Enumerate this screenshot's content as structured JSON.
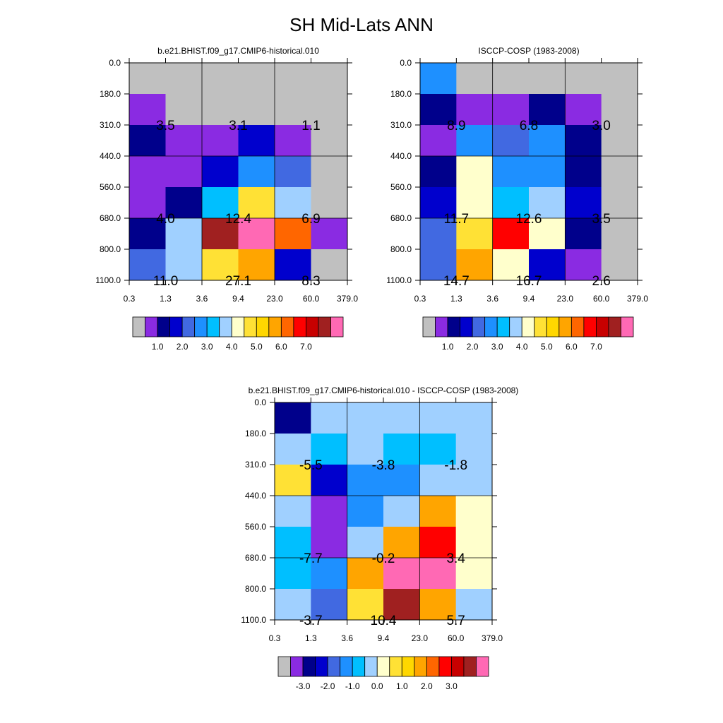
{
  "figure": {
    "title": "SH Mid-Lats ANN",
    "palette": [
      "#c0c0c0",
      "#8a2be2",
      "#00008b",
      "#0000cd",
      "#4169e1",
      "#1e90ff",
      "#00bfff",
      "#a0d0ff",
      "#ffffcc",
      "#ffe135",
      "#ffd700",
      "#ffa500",
      "#ff6600",
      "#ff0000",
      "#c80000",
      "#a02020",
      "#ff69b4"
    ]
  },
  "chart_data": [
    {
      "type": "heatmap",
      "title": "b.e21.BHIST.f09_g17.CMIP6-historical.010",
      "x_ticks": [
        "0.3",
        "1.3",
        "3.6",
        "9.4",
        "23.0",
        "60.0",
        "379.0"
      ],
      "y_ticks": [
        "0.0",
        "180.0",
        "310.0",
        "440.0",
        "560.0",
        "680.0",
        "800.0",
        "1100.0"
      ],
      "cell_colors": [
        [
          "#c0c0c0",
          "#c0c0c0",
          "#c0c0c0",
          "#c0c0c0",
          "#c0c0c0",
          "#c0c0c0"
        ],
        [
          "#8a2be2",
          "#c0c0c0",
          "#c0c0c0",
          "#c0c0c0",
          "#c0c0c0",
          "#c0c0c0"
        ],
        [
          "#00008b",
          "#8a2be2",
          "#8a2be2",
          "#0000cd",
          "#8a2be2",
          "#c0c0c0"
        ],
        [
          "#8a2be2",
          "#8a2be2",
          "#0000cd",
          "#1e90ff",
          "#4169e1",
          "#c0c0c0"
        ],
        [
          "#8a2be2",
          "#00008b",
          "#00bfff",
          "#ffe135",
          "#a0d0ff",
          "#c0c0c0"
        ],
        [
          "#00008b",
          "#a0d0ff",
          "#a02020",
          "#ff69b4",
          "#ff6600",
          "#8a2be2"
        ],
        [
          "#4169e1",
          "#a0d0ff",
          "#ffe135",
          "#ffa500",
          "#0000cd",
          "#c0c0c0"
        ]
      ],
      "annotations": [
        {
          "text": "3.5",
          "col": 1,
          "row": 1
        },
        {
          "text": "3.1",
          "col": 3,
          "row": 1
        },
        {
          "text": "1.1",
          "col": 5,
          "row": 1
        },
        {
          "text": "4.0",
          "col": 1,
          "row": 4
        },
        {
          "text": "12.4",
          "col": 3,
          "row": 4
        },
        {
          "text": "6.9",
          "col": 5,
          "row": 4
        },
        {
          "text": "11.0",
          "col": 1,
          "row": 6
        },
        {
          "text": "27.1",
          "col": 3,
          "row": 6
        },
        {
          "text": "8.3",
          "col": 5,
          "row": 6
        }
      ],
      "colorbar": {
        "colors": [
          "#c0c0c0",
          "#8a2be2",
          "#00008b",
          "#0000cd",
          "#4169e1",
          "#1e90ff",
          "#00bfff",
          "#a0d0ff",
          "#ffffcc",
          "#ffe135",
          "#ffd700",
          "#ffa500",
          "#ff6600",
          "#ff0000",
          "#c80000",
          "#a02020",
          "#ff69b4"
        ],
        "labels": [
          {
            "text": "1.0",
            "edge": 2
          },
          {
            "text": "2.0",
            "edge": 4
          },
          {
            "text": "3.0",
            "edge": 6
          },
          {
            "text": "4.0",
            "edge": 8
          },
          {
            "text": "5.0",
            "edge": 10
          },
          {
            "text": "6.0",
            "edge": 12
          },
          {
            "text": "7.0",
            "edge": 14
          }
        ]
      }
    },
    {
      "type": "heatmap",
      "title": "ISCCP-COSP (1983-2008)",
      "x_ticks": [
        "0.3",
        "1.3",
        "3.6",
        "9.4",
        "23.0",
        "60.0",
        "379.0"
      ],
      "y_ticks": [
        "0.0",
        "180.0",
        "310.0",
        "440.0",
        "560.0",
        "680.0",
        "800.0",
        "1100.0"
      ],
      "cell_colors": [
        [
          "#1e90ff",
          "#c0c0c0",
          "#c0c0c0",
          "#c0c0c0",
          "#c0c0c0",
          "#c0c0c0"
        ],
        [
          "#00008b",
          "#8a2be2",
          "#8a2be2",
          "#00008b",
          "#8a2be2",
          "#c0c0c0"
        ],
        [
          "#8a2be2",
          "#1e90ff",
          "#4169e1",
          "#1e90ff",
          "#00008b",
          "#c0c0c0"
        ],
        [
          "#00008b",
          "#ffffcc",
          "#1e90ff",
          "#1e90ff",
          "#00008b",
          "#c0c0c0"
        ],
        [
          "#0000cd",
          "#ffffcc",
          "#00bfff",
          "#a0d0ff",
          "#0000cd",
          "#c0c0c0"
        ],
        [
          "#4169e1",
          "#ffe135",
          "#ff0000",
          "#ffffcc",
          "#00008b",
          "#c0c0c0"
        ],
        [
          "#4169e1",
          "#ffa500",
          "#ffffcc",
          "#0000cd",
          "#8a2be2",
          "#c0c0c0"
        ]
      ],
      "annotations": [
        {
          "text": "8.9",
          "col": 1,
          "row": 1
        },
        {
          "text": "6.8",
          "col": 3,
          "row": 1
        },
        {
          "text": "3.0",
          "col": 5,
          "row": 1
        },
        {
          "text": "11.7",
          "col": 1,
          "row": 4
        },
        {
          "text": "12.6",
          "col": 3,
          "row": 4
        },
        {
          "text": "3.5",
          "col": 5,
          "row": 4
        },
        {
          "text": "14.7",
          "col": 1,
          "row": 6
        },
        {
          "text": "16.7",
          "col": 3,
          "row": 6
        },
        {
          "text": "2.6",
          "col": 5,
          "row": 6
        }
      ],
      "colorbar": {
        "colors": [
          "#c0c0c0",
          "#8a2be2",
          "#00008b",
          "#0000cd",
          "#4169e1",
          "#1e90ff",
          "#00bfff",
          "#a0d0ff",
          "#ffffcc",
          "#ffe135",
          "#ffd700",
          "#ffa500",
          "#ff6600",
          "#ff0000",
          "#c80000",
          "#a02020",
          "#ff69b4"
        ],
        "labels": [
          {
            "text": "1.0",
            "edge": 2
          },
          {
            "text": "2.0",
            "edge": 4
          },
          {
            "text": "3.0",
            "edge": 6
          },
          {
            "text": "4.0",
            "edge": 8
          },
          {
            "text": "5.0",
            "edge": 10
          },
          {
            "text": "6.0",
            "edge": 12
          },
          {
            "text": "7.0",
            "edge": 14
          }
        ]
      }
    },
    {
      "type": "heatmap",
      "title": "b.e21.BHIST.f09_g17.CMIP6-historical.010 - ISCCP-COSP (1983-2008)",
      "x_ticks": [
        "0.3",
        "1.3",
        "3.6",
        "9.4",
        "23.0",
        "60.0",
        "379.0"
      ],
      "y_ticks": [
        "0.0",
        "180.0",
        "310.0",
        "440.0",
        "560.0",
        "680.0",
        "800.0",
        "1100.0"
      ],
      "cell_colors": [
        [
          "#00008b",
          "#a0d0ff",
          "#a0d0ff",
          "#a0d0ff",
          "#a0d0ff",
          "#a0d0ff"
        ],
        [
          "#a0d0ff",
          "#00bfff",
          "#a0d0ff",
          "#00bfff",
          "#00bfff",
          "#a0d0ff"
        ],
        [
          "#ffe135",
          "#0000cd",
          "#1e90ff",
          "#1e90ff",
          "#a0d0ff",
          "#a0d0ff"
        ],
        [
          "#a0d0ff",
          "#8a2be2",
          "#1e90ff",
          "#a0d0ff",
          "#ffa500",
          "#ffffcc"
        ],
        [
          "#00bfff",
          "#8a2be2",
          "#a0d0ff",
          "#ffa500",
          "#ff0000",
          "#ffffcc"
        ],
        [
          "#00bfff",
          "#1e90ff",
          "#ffa500",
          "#ff69b4",
          "#ff69b4",
          "#ffffcc"
        ],
        [
          "#a0d0ff",
          "#4169e1",
          "#ffe135",
          "#a02020",
          "#ffa500",
          "#a0d0ff"
        ]
      ],
      "annotations": [
        {
          "text": "-5.5",
          "col": 1,
          "row": 1
        },
        {
          "text": "-3.8",
          "col": 3,
          "row": 1
        },
        {
          "text": "-1.8",
          "col": 5,
          "row": 1
        },
        {
          "text": "-7.7",
          "col": 1,
          "row": 4
        },
        {
          "text": "-0.2",
          "col": 3,
          "row": 4
        },
        {
          "text": "3.4",
          "col": 5,
          "row": 4
        },
        {
          "text": "-3.7",
          "col": 1,
          "row": 6
        },
        {
          "text": "10.4",
          "col": 3,
          "row": 6
        },
        {
          "text": "5.7",
          "col": 5,
          "row": 6
        }
      ],
      "colorbar": {
        "colors": [
          "#c0c0c0",
          "#8a2be2",
          "#00008b",
          "#0000cd",
          "#4169e1",
          "#1e90ff",
          "#00bfff",
          "#a0d0ff",
          "#ffffcc",
          "#ffe135",
          "#ffd700",
          "#ffa500",
          "#ff6600",
          "#ff0000",
          "#c80000",
          "#a02020",
          "#ff69b4"
        ],
        "labels": [
          {
            "text": "-3.0",
            "edge": 2
          },
          {
            "text": "-2.0",
            "edge": 4
          },
          {
            "text": "-1.0",
            "edge": 6
          },
          {
            "text": "0.0",
            "edge": 8
          },
          {
            "text": "1.0",
            "edge": 10
          },
          {
            "text": "2.0",
            "edge": 12
          },
          {
            "text": "3.0",
            "edge": 14
          }
        ]
      }
    }
  ]
}
